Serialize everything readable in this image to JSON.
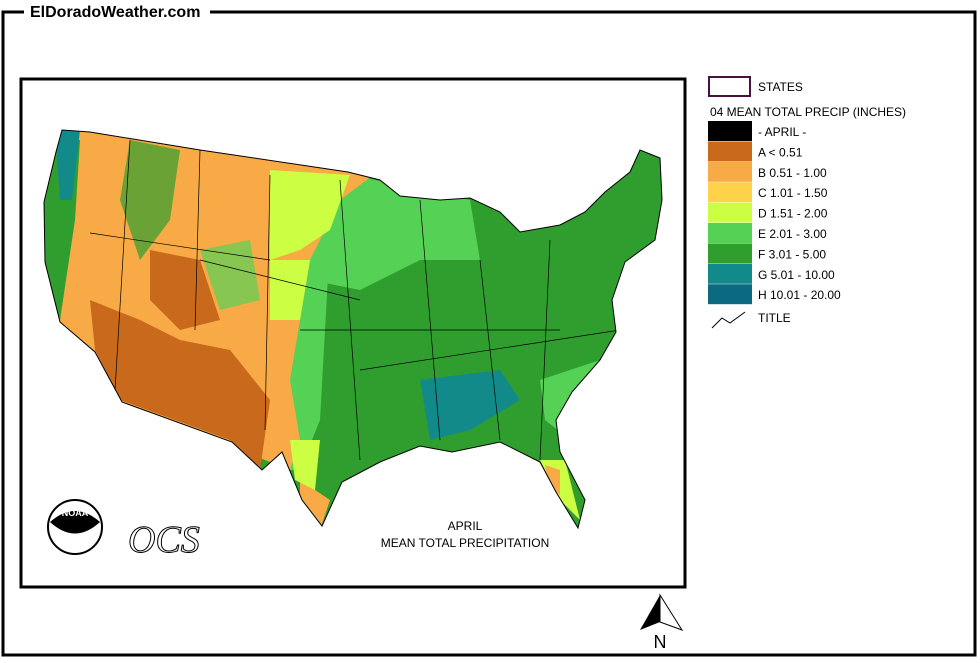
{
  "header": {
    "title": "ElDoradoWeather.com"
  },
  "map": {
    "caption_line1": "APRIL",
    "caption_line2": "MEAN TOTAL PRECIPITATION",
    "logo_text": "NOAA",
    "ocs_text": "OCS",
    "compass": "N"
  },
  "legend": {
    "states_label": "STATES",
    "title": "04 MEAN TOTAL PRECIP (INCHES)",
    "classes": [
      {
        "label": "- APRIL -",
        "color": "#000000"
      },
      {
        "label": "A < 0.51",
        "color": "#c8691c"
      },
      {
        "label": "B 0.51 - 1.00",
        "color": "#f7aa46"
      },
      {
        "label": "C 1.01 - 1.50",
        "color": "#ffd24a"
      },
      {
        "label": "D 1.51 - 2.00",
        "color": "#ccff44"
      },
      {
        "label": "E 2.01 - 3.00",
        "color": "#55d255"
      },
      {
        "label": "F 3.01 - 5.00",
        "color": "#2f9e2f"
      },
      {
        "label": "G 5.01 - 10.00",
        "color": "#138a8a"
      },
      {
        "label": "H 10.01 - 20.00",
        "color": "#0c6a80"
      }
    ],
    "title_label": "TITLE"
  }
}
